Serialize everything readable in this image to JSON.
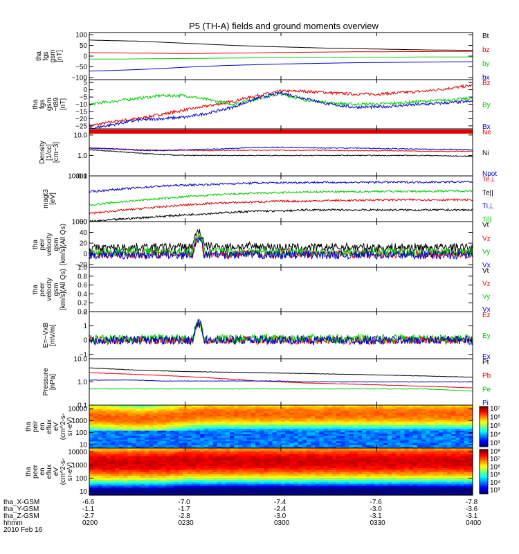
{
  "title": "P5 (TH-A) fields and ground moments overview",
  "colors": {
    "black": "#000000",
    "red": "#e00000",
    "green": "#00cc00",
    "blue": "#0000cc"
  },
  "x_axis": {
    "row_labels": [
      "tha_X-GSM",
      "tha_Y-GSM",
      "tha_Z-GSM",
      "hhmm",
      "2010 Feb 16"
    ],
    "ticks": [
      {
        "x": "-6.6",
        "y": "-1.1",
        "z": "-2.7",
        "t": "0200"
      },
      {
        "x": "-7.0",
        "y": "-1.7",
        "z": "-2.8",
        "t": "0230"
      },
      {
        "x": "-7.4",
        "y": "-2.4",
        "z": "-3.0",
        "t": "0300"
      },
      {
        "x": "-7.6",
        "y": "-3.0",
        "z": "-3.1",
        "t": "0330"
      },
      {
        "x": "-7.8",
        "y": "-3.6",
        "z": "-3.1",
        "t": "0400"
      }
    ]
  },
  "chart_data": [
    {
      "type": "line",
      "ylabel": "tha\nfgs\ngsm\n[nT]",
      "yticks": [
        "100",
        "50",
        "0",
        "−50",
        "−100"
      ],
      "ylim": [
        -110,
        110
      ],
      "log": false,
      "series": [
        {
          "name": "Bt",
          "color": "#000000",
          "values": [
            75,
            72,
            70,
            65,
            60,
            55,
            50,
            46,
            43,
            40,
            37,
            35,
            33,
            31,
            29,
            28,
            27
          ]
        },
        {
          "name": "bz",
          "color": "#e00000",
          "values": [
            16,
            15,
            14,
            13,
            12,
            13,
            14,
            15,
            17,
            18,
            19,
            20,
            20,
            21,
            21,
            22,
            22
          ]
        },
        {
          "name": "by",
          "color": "#00cc00",
          "values": [
            -14,
            -14,
            -13,
            -12,
            -11,
            -10,
            -9,
            -8,
            -7,
            -6,
            -6,
            -5,
            -5,
            -5,
            -4,
            -4,
            -4
          ]
        },
        {
          "name": "bx",
          "color": "#0000cc",
          "values": [
            -70,
            -67,
            -63,
            -58,
            -52,
            -47,
            -43,
            -40,
            -37,
            -35,
            -33,
            -31,
            -30,
            -29,
            -28,
            -27,
            -26
          ]
        }
      ]
    },
    {
      "type": "line",
      "ylabel": "tha\nfgs\ngsm\n−t89\n[nT]",
      "yticks": [
        "5",
        "0",
        "−5",
        "−10",
        "−15",
        "−20",
        "−25"
      ],
      "ylim": [
        -27,
        7
      ],
      "log": false,
      "noise": 1.0,
      "series": [
        {
          "name": "Bz",
          "color": "#e00000",
          "values": [
            -25,
            -22,
            -20,
            -17,
            -14,
            -11,
            -8,
            -4,
            -1,
            -1,
            -2,
            -3,
            -3,
            -2,
            -1,
            1,
            3
          ]
        },
        {
          "name": "By",
          "color": "#00cc00",
          "values": [
            -10,
            -8,
            -6,
            -4,
            -4,
            -7,
            -10,
            -6,
            -3,
            -7,
            -9,
            -10,
            -10,
            -9,
            -8,
            -7,
            -6
          ]
        },
        {
          "name": "Bx",
          "color": "#0000cc",
          "values": [
            -27,
            -24,
            -21,
            -20,
            -19,
            -16,
            -12,
            -6,
            -2,
            -6,
            -10,
            -12,
            -12,
            -11,
            -10,
            -9,
            -8
          ]
        }
      ]
    },
    {
      "type": "line",
      "ylabel": "Density\n[1/cc]\n[cm−3]",
      "yticks": [
        "10.0",
        "1.0",
        "0.1"
      ],
      "ylim": [
        0.1,
        20
      ],
      "log": true,
      "noise": 0.05,
      "redbar": true,
      "series": [
        {
          "name": "Ne",
          "color": "#e00000",
          "values": [
            2.3,
            2.1,
            1.9,
            1.8,
            1.8,
            1.7,
            1.8,
            1.8,
            1.8,
            1.8,
            1.8,
            1.7,
            1.7,
            1.7,
            1.6,
            1.6,
            1.6
          ]
        },
        {
          "name": "Ni",
          "color": "#000000",
          "values": [
            1.9,
            1.6,
            1.3,
            1.1,
            1.0,
            1.0,
            1.0,
            1.0,
            1.0,
            1.0,
            1.0,
            1.0,
            1.0,
            1.0,
            1.0,
            0.95,
            0.9
          ]
        },
        {
          "name": "Npot",
          "color": "#0000cc",
          "values": [
            2.3,
            2.1,
            1.8,
            1.7,
            1.9,
            2.0,
            2.2,
            2.5,
            2.5,
            2.4,
            2.3,
            2.3,
            2.2,
            2.1,
            2.0,
            2.0,
            1.9
          ]
        }
      ]
    },
    {
      "type": "line",
      "ylabel": "magt3\n[eV]",
      "yticks": [
        "10000",
        "1000"
      ],
      "ylim": [
        1000,
        10000
      ],
      "log": true,
      "noise": 0.05,
      "series": [
        {
          "name": "Te⊥",
          "color": "#e00000",
          "values": [
            1500,
            1700,
            1900,
            2100,
            2300,
            2500,
            2600,
            2700,
            2800,
            2800,
            2900,
            2900,
            3000,
            3000,
            3000,
            3000,
            3000
          ]
        },
        {
          "name": "Te||",
          "color": "#000000",
          "values": [
            1000,
            1100,
            1200,
            1300,
            1400,
            1500,
            1600,
            1700,
            1700,
            1800,
            1800,
            1800,
            1800,
            1800,
            1800,
            1800,
            1800
          ]
        },
        {
          "name": "Ti⊥",
          "color": "#0000cc",
          "values": [
            4500,
            5000,
            5500,
            6000,
            6300,
            6500,
            6800,
            7000,
            7100,
            7200,
            7200,
            7200,
            7300,
            7300,
            7300,
            7400,
            7400
          ]
        },
        {
          "name": "Ti||",
          "color": "#00cc00",
          "values": [
            2300,
            2600,
            2900,
            3200,
            3500,
            3800,
            4000,
            4200,
            4300,
            4400,
            4500,
            4500,
            4600,
            4600,
            4600,
            4700,
            4700
          ]
        }
      ]
    },
    {
      "type": "line",
      "ylabel": "tha\npeir\nvelocity\ngsm\n[km/s](All Qs)",
      "yticks": [
        "60",
        "40",
        "20",
        "0",
        "−20"
      ],
      "ylim": [
        -25,
        60
      ],
      "log": false,
      "noise": 8,
      "series": [
        {
          "name": "Vt",
          "color": "#000000",
          "values": [
            10,
            11,
            12,
            12,
            13,
            14,
            13,
            14,
            12,
            11,
            12,
            12,
            11,
            12,
            12,
            12,
            11
          ]
        },
        {
          "name": "Vz",
          "color": "#e00000",
          "values": [
            0,
            0,
            0,
            0,
            0,
            0,
            0,
            0,
            0,
            0,
            0,
            0,
            0,
            0,
            0,
            0,
            0
          ]
        },
        {
          "name": "Vy",
          "color": "#00cc00",
          "values": [
            3,
            3,
            4,
            4,
            4,
            4,
            4,
            4,
            3,
            3,
            3,
            3,
            3,
            3,
            3,
            3,
            3
          ]
        },
        {
          "name": "Vx",
          "color": "#0000cc",
          "values": [
            -2,
            -2,
            -2,
            -2,
            -2,
            -2,
            -2,
            -2,
            -2,
            -2,
            -2,
            -2,
            -2,
            -2,
            -2,
            -2,
            -2
          ]
        }
      ]
    },
    {
      "type": "line",
      "ylabel": "tha\npeer\nvelocity\ngsm\n[km/s](All Qs)",
      "yticks": [
        "1.0",
        "0.8",
        "0.6",
        "0.4",
        "0.2",
        "0.0"
      ],
      "ylim": [
        0,
        1
      ],
      "log": false,
      "series": [
        {
          "name": "Vt",
          "color": "#000000",
          "values": []
        },
        {
          "name": "Vz",
          "color": "#e00000",
          "values": []
        },
        {
          "name": "Vy",
          "color": "#00cc00",
          "values": []
        },
        {
          "name": "Vx",
          "color": "#0000cc",
          "values": []
        }
      ]
    },
    {
      "type": "line",
      "ylabel": "E=−VxB\n[mV/m]",
      "yticks": [
        "2",
        "1",
        "0",
        "−1"
      ],
      "ylim": [
        -1.3,
        2
      ],
      "log": false,
      "noise": 0.3,
      "series": [
        {
          "name": "Ez",
          "color": "#e00000",
          "values": [
            0,
            0,
            0,
            0,
            0,
            0,
            0,
            0,
            0,
            0,
            0,
            0,
            0,
            0,
            0,
            0,
            0
          ]
        },
        {
          "name": "Ey",
          "color": "#00cc00",
          "values": [
            0.1,
            0.1,
            0.1,
            0.1,
            0.1,
            0.1,
            0.1,
            0.1,
            0.1,
            0.1,
            0.1,
            0.1,
            0.1,
            0.1,
            0.1,
            0.1,
            0.1
          ]
        },
        {
          "name": "Ex",
          "color": "#0000cc",
          "values": [
            0,
            0,
            0,
            0,
            0,
            0,
            0,
            0,
            0,
            0,
            0,
            0,
            0,
            0,
            0,
            0,
            0
          ]
        }
      ]
    },
    {
      "type": "line",
      "ylabel": "Pressure\n[nPa]",
      "yticks": [
        "10.0",
        "1.0",
        "0.1"
      ],
      "ylim": [
        0.1,
        10
      ],
      "log": true,
      "noise": 0.02,
      "series": [
        {
          "name": "Pt",
          "color": "#000000",
          "values": [
            4.0,
            3.6,
            3.2,
            3.0,
            2.8,
            2.7,
            2.6,
            2.5,
            2.4,
            2.3,
            2.2,
            2.1,
            2.0,
            1.9,
            1.8,
            1.7,
            1.6
          ]
        },
        {
          "name": "Pb",
          "color": "#e00000",
          "values": [
            2.5,
            2.3,
            2.1,
            1.9,
            1.7,
            1.5,
            1.3,
            1.1,
            1.0,
            0.9,
            0.85,
            0.8,
            0.75,
            0.7,
            0.65,
            0.6,
            0.55
          ]
        },
        {
          "name": "Pe",
          "color": "#00cc00",
          "values": [
            0.5,
            0.5,
            0.5,
            0.5,
            0.5,
            0.5,
            0.5,
            0.5,
            0.5,
            0.5,
            0.5,
            0.5,
            0.5,
            0.5,
            0.5,
            0.45,
            0.4
          ]
        },
        {
          "name": "Pi",
          "color": "#0000cc",
          "values": [
            1.2,
            1.2,
            1.2,
            1.1,
            1.1,
            1.1,
            1.1,
            1.1,
            1.1,
            1.0,
            1.0,
            1.0,
            1.0,
            1.0,
            1.0,
            1.0,
            1.0
          ]
        }
      ]
    },
    {
      "type": "heatmap",
      "ylabel": "tha\npeir\nen\neflux\neV\n(cm^2-s-\nsr-eV)",
      "yticks": [
        "10000",
        "1000",
        "100",
        "10"
      ],
      "ylim": [
        5,
        20000
      ],
      "log": true,
      "colorbar_labels": [
        "10⁷",
        "10⁶",
        "10⁵",
        "10⁴",
        "10³"
      ],
      "peak_log_energy": [
        3.4,
        3.3,
        3.2,
        3.3,
        3.5,
        3.6,
        3.6,
        3.6,
        3.6,
        3.6,
        3.6,
        3.6,
        3.6,
        3.6,
        3.6,
        3.6,
        3.6
      ]
    },
    {
      "type": "heatmap",
      "ylabel": "tha\npeer\nen\neflux\neV\n(cm^2-s-\nsr-eV)",
      "yticks": [
        "10000",
        "1000",
        "100",
        "10"
      ],
      "ylim": [
        5,
        20000
      ],
      "log": true,
      "colorbar_labels": [
        "10⁸",
        "10⁷",
        "10⁶",
        "10⁵",
        "10⁴",
        "10³"
      ],
      "peak_log_energy": [
        3.2,
        3.2,
        3.2,
        3.2,
        3.3,
        3.3,
        3.3,
        3.3,
        3.3,
        3.3,
        3.3,
        3.3,
        3.3,
        3.3,
        3.3,
        3.3,
        3.3
      ]
    }
  ]
}
